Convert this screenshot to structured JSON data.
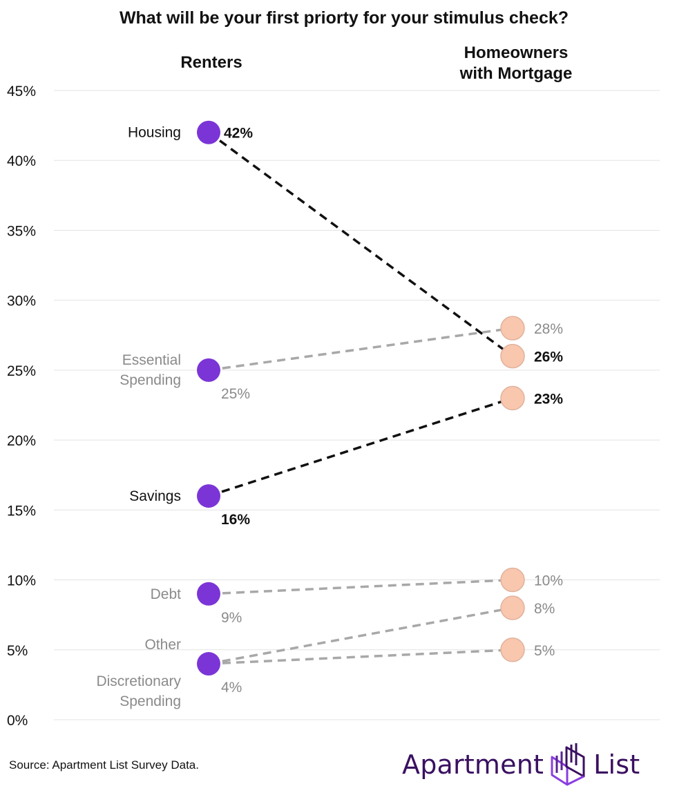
{
  "title": "What will be your first priorty for your stimulus check?",
  "colors": {
    "renters": "#7b35d6",
    "homeowners": "#f9c6ae",
    "homeowners_stroke": "#e0b29c",
    "highlight_line": "#111111",
    "muted_line": "#a8a8a8",
    "muted_text": "#8a8a8a",
    "grid": "#e3e3e3",
    "brand": "#3a1060"
  },
  "chart_data": {
    "type": "slope",
    "title": "What will be your first priorty for your stimulus check?",
    "columns": [
      "Renters",
      "Homeowners\nwith Mortgage"
    ],
    "y_ticks": [
      "0%",
      "5%",
      "10%",
      "15%",
      "20%",
      "25%",
      "30%",
      "35%",
      "40%",
      "45%"
    ],
    "ylim": [
      0,
      45
    ],
    "unit": "%",
    "grid": true,
    "series": [
      {
        "name": "Housing",
        "label": "Housing",
        "renters": 42,
        "homeowners": 26,
        "highlight": true
      },
      {
        "name": "Essential Spending",
        "label": "Essential\nSpending",
        "renters": 25,
        "homeowners": 28,
        "highlight": false
      },
      {
        "name": "Savings",
        "label": "Savings",
        "renters": 16,
        "homeowners": 23,
        "highlight": true
      },
      {
        "name": "Debt",
        "label": "Debt",
        "renters": 9,
        "homeowners": 10,
        "highlight": false
      },
      {
        "name": "Other Discretionary Spending",
        "label": "Other\nDiscretionary\nSpending",
        "renters": 4,
        "homeowners": 8,
        "highlight": false
      },
      {
        "name": "Other",
        "label": "",
        "renters": 4,
        "homeowners": 5,
        "highlight": false
      }
    ]
  },
  "footer": {
    "source": "Source: Apartment List Survey Data.",
    "logo_word_1": "Apartment",
    "logo_word_2": "List",
    "logo_icon": "apartment-list-building-icon"
  }
}
